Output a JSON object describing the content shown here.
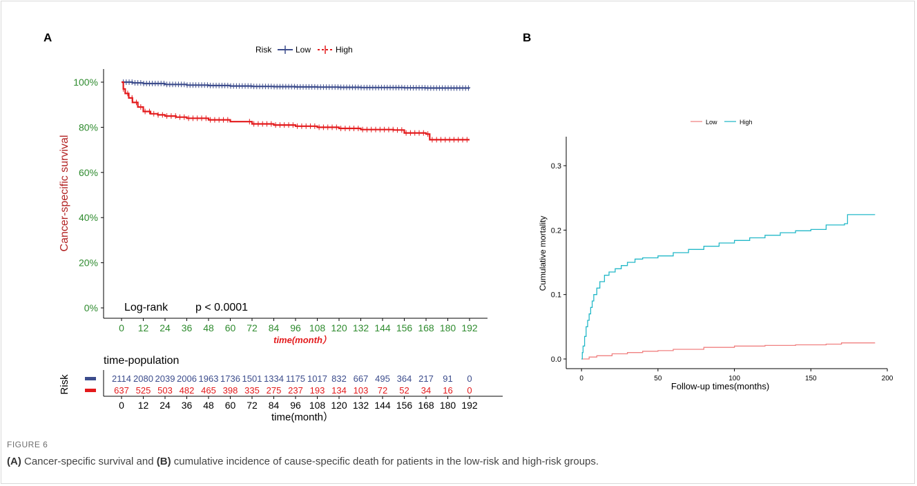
{
  "figure": {
    "number_label": "FIGURE 6",
    "caption": {
      "part_a_tag": "(A)",
      "part_a_text": " Cancer-specific survival and ",
      "part_b_tag": "(B)",
      "part_b_text": " cumulative incidence of cause-specific death for patients in the low-risk and high-risk groups."
    }
  },
  "colors": {
    "low_a": "#3c4c8c",
    "high_a": "#e31a1c",
    "tick_green": "#2e8b2e",
    "ylabel_a": "#b22222",
    "xlabel_a": "#e31a1c",
    "low_b": "#f08080",
    "high_b": "#22b8c8"
  },
  "chart_data": [
    {
      "panel": "A",
      "type": "line",
      "legend": {
        "title": "Risk",
        "position": "top"
      },
      "ylabel": "Cancer-specific survival",
      "xlabel": "time(month）",
      "ylim": [
        0,
        1
      ],
      "yticks": [
        "0%",
        "20%",
        "40%",
        "60%",
        "80%",
        "100%"
      ],
      "xlim": [
        0,
        192
      ],
      "xticks": [
        "0",
        "12",
        "24",
        "36",
        "48",
        "60",
        "72",
        "84",
        "96",
        "108",
        "120",
        "132",
        "144",
        "156",
        "168",
        "180",
        "192"
      ],
      "annotation": {
        "test": "Log-rank",
        "p": "p < 0.0001"
      },
      "series": [
        {
          "name": "Low",
          "x": [
            0,
            6,
            12,
            24,
            36,
            48,
            60,
            72,
            84,
            96,
            108,
            120,
            132,
            144,
            156,
            168,
            180,
            192
          ],
          "y": [
            1.0,
            0.997,
            0.994,
            0.99,
            0.987,
            0.985,
            0.983,
            0.981,
            0.98,
            0.979,
            0.978,
            0.977,
            0.976,
            0.976,
            0.975,
            0.974,
            0.974,
            0.973
          ]
        },
        {
          "name": "High",
          "x": [
            0,
            1,
            2,
            4,
            6,
            9,
            12,
            16,
            20,
            24,
            30,
            36,
            48,
            60,
            72,
            84,
            96,
            108,
            120,
            132,
            144,
            150,
            154,
            156,
            168,
            170,
            180,
            192
          ],
          "y": [
            1.0,
            0.97,
            0.95,
            0.93,
            0.91,
            0.89,
            0.87,
            0.86,
            0.855,
            0.85,
            0.845,
            0.84,
            0.833,
            0.825,
            0.815,
            0.81,
            0.805,
            0.8,
            0.795,
            0.79,
            0.79,
            0.788,
            0.788,
            0.775,
            0.77,
            0.745,
            0.745,
            0.745
          ]
        }
      ],
      "risk_table": {
        "title": "time-population",
        "ylabel": "Risk",
        "xlabel": "time(month）",
        "times": [
          "0",
          "12",
          "24",
          "36",
          "48",
          "60",
          "72",
          "84",
          "96",
          "108",
          "120",
          "132",
          "144",
          "156",
          "168",
          "180",
          "192"
        ],
        "rows": [
          {
            "name": "Low",
            "values": [
              "2114",
              "2080",
              "2039",
              "2006",
              "1963",
              "1736",
              "1501",
              "1334",
              "1175",
              "1017",
              "832",
              "667",
              "495",
              "364",
              "217",
              "91",
              "0"
            ]
          },
          {
            "name": "High",
            "values": [
              "637",
              "525",
              "503",
              "482",
              "465",
              "398",
              "335",
              "275",
              "237",
              "193",
              "134",
              "103",
              "72",
              "52",
              "34",
              "16",
              "0"
            ]
          }
        ]
      }
    },
    {
      "panel": "B",
      "type": "line",
      "legend": {
        "position": "top"
      },
      "ylabel": "Cumulative mortality",
      "xlabel": "Follow-up times(months)",
      "xlim": [
        -10,
        200
      ],
      "ylim": [
        -0.015,
        0.345
      ],
      "xticks": [
        0,
        50,
        100,
        150,
        200
      ],
      "yticks": [
        0.0,
        0.1,
        0.2,
        0.3
      ],
      "ytick_labels": [
        "0.0",
        "0.1",
        "0.2",
        "0.3"
      ],
      "series": [
        {
          "name": "Low",
          "x": [
            0,
            5,
            10,
            20,
            30,
            40,
            50,
            60,
            80,
            100,
            120,
            140,
            160,
            170,
            192
          ],
          "y": [
            0.0,
            0.003,
            0.005,
            0.008,
            0.01,
            0.012,
            0.013,
            0.015,
            0.018,
            0.02,
            0.021,
            0.022,
            0.023,
            0.025,
            0.025
          ]
        },
        {
          "name": "High",
          "x": [
            0,
            0.5,
            1,
            2,
            3,
            4,
            5,
            6,
            7,
            8,
            10,
            12,
            15,
            18,
            22,
            26,
            30,
            35,
            40,
            50,
            60,
            70,
            80,
            90,
            100,
            110,
            120,
            130,
            140,
            150,
            160,
            172,
            174,
            192
          ],
          "y": [
            0.0,
            0.01,
            0.02,
            0.035,
            0.05,
            0.06,
            0.07,
            0.08,
            0.09,
            0.1,
            0.11,
            0.12,
            0.13,
            0.135,
            0.14,
            0.145,
            0.15,
            0.155,
            0.157,
            0.16,
            0.165,
            0.17,
            0.175,
            0.18,
            0.184,
            0.188,
            0.192,
            0.196,
            0.199,
            0.201,
            0.208,
            0.21,
            0.224,
            0.224
          ]
        }
      ]
    }
  ]
}
